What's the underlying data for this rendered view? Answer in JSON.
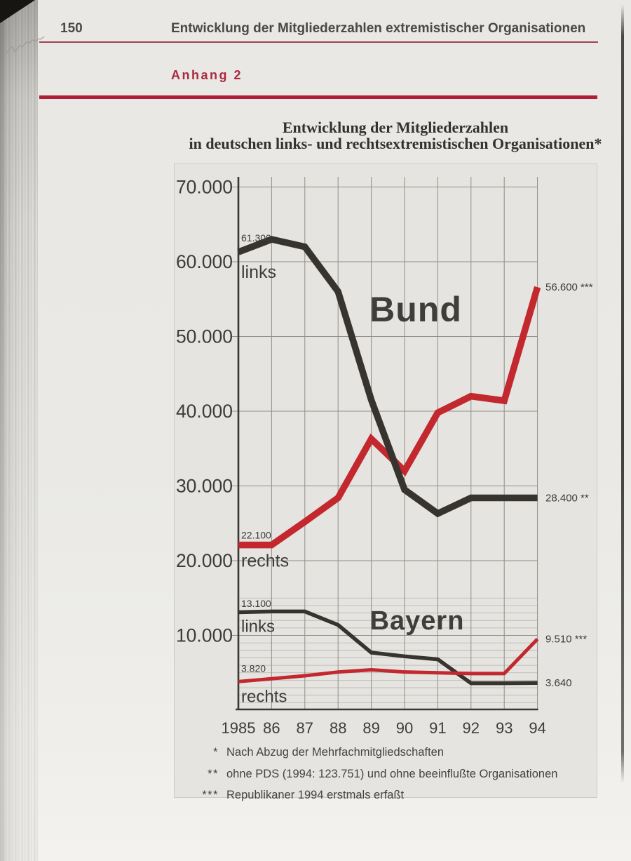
{
  "page": {
    "page_number": "150",
    "header_title": "Entwicklung der Mitgliederzahlen extremistischer Organisationen",
    "section_label": "Anhang 2"
  },
  "chart_data": {
    "type": "line",
    "title_line1": "Entwicklung der Mitgliederzahlen",
    "title_line2": "in deutschen links- und rechtsextremistischen Organisationen*",
    "x_tick_labels": [
      "1985",
      "86",
      "87",
      "88",
      "89",
      "90",
      "91",
      "92",
      "93",
      "94"
    ],
    "y_axis": {
      "tick_labels": [
        "70.000",
        "60.000",
        "50.000",
        "40.000",
        "30.000",
        "20.000",
        "10.000"
      ],
      "tick_values": [
        70000,
        60000,
        50000,
        40000,
        30000,
        20000,
        10000
      ],
      "minor_grid_step": 1000,
      "minor_grid_max": 15000,
      "range": [
        0,
        71000
      ]
    },
    "colors": {
      "dark_line": "#37342f",
      "red_line": "#c2282e",
      "grid_major": "#8f8e88",
      "grid_minor": "#b6b5ae",
      "axis": "#3a3834",
      "text": "#3e3c38"
    },
    "series": [
      {
        "name": "Bund links",
        "color": "#37342f",
        "values": [
          61300,
          63000,
          62000,
          56000,
          41500,
          29500,
          26300,
          28400,
          28400,
          28400
        ],
        "start_value_label": "61.300",
        "side_label": "links",
        "end_value_label": "28.400 **"
      },
      {
        "name": "Bund rechts",
        "color": "#c2282e",
        "values": [
          22100,
          22100,
          25200,
          28400,
          36300,
          32000,
          39800,
          42000,
          41400,
          56600
        ],
        "start_value_label": "22.100",
        "side_label": "rechts",
        "end_value_label": "56.600 ***"
      },
      {
        "name": "Bayern links",
        "color": "#37342f",
        "values": [
          13100,
          13200,
          13200,
          11400,
          7700,
          7200,
          6800,
          3600,
          3600,
          3640
        ],
        "start_value_label": "13.100",
        "side_label": "links",
        "end_value_label": "3.640"
      },
      {
        "name": "Bayern rechts",
        "color": "#c2282e",
        "values": [
          3820,
          4200,
          4600,
          5100,
          5400,
          5100,
          5000,
          4900,
          4900,
          9510
        ],
        "start_value_label": "3.820",
        "side_label": "rechts",
        "end_value_label": "9.510 ***"
      }
    ],
    "region_labels": [
      {
        "text": "Bund"
      },
      {
        "text": "Bayern"
      }
    ],
    "footnotes": [
      {
        "marker": "*",
        "text": "Nach Abzug der Mehrfachmitgliedschaften"
      },
      {
        "marker": "**",
        "text": "ohne PDS (1994: 123.751) und ohne beeinflußte Organisationen"
      },
      {
        "marker": "***",
        "text": "Republikaner 1994 erstmals erfaßt"
      }
    ]
  }
}
